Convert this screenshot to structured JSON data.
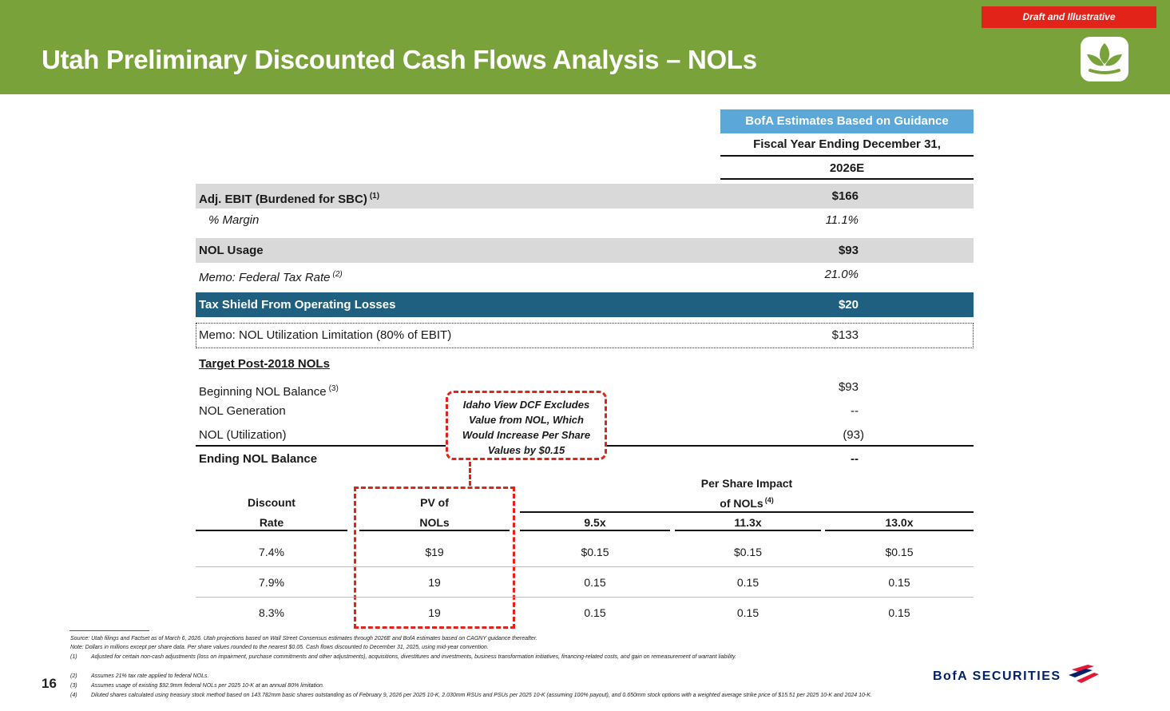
{
  "header": {
    "title": "Utah Preliminary Discounted Cash Flows Analysis – NOLs",
    "badge": "Draft and Illustrative",
    "logo_icon": "utah-leaf-logo-icon"
  },
  "column_header": {
    "guidance": "BofA Estimates Based on Guidance",
    "fiscal_year": "Fiscal Year Ending December 31,",
    "year": "2026E"
  },
  "rows": {
    "ebit": {
      "label": "Adj. EBIT (Burdened for SBC)",
      "note": "(1)",
      "value": "$166"
    },
    "margin": {
      "label": "% Margin",
      "value": "11.1%"
    },
    "nol_usage": {
      "label": "NOL Usage",
      "value": "$93"
    },
    "tax_rate": {
      "label": "Memo: Federal Tax Rate",
      "note": "(2)",
      "value": "21.0%"
    },
    "tax_shield": {
      "label": "Tax Shield From Operating Losses",
      "value": "$20"
    },
    "limitation": {
      "label": "Memo: NOL Utilization Limitation (80% of EBIT)",
      "value": "$133"
    },
    "target": {
      "label": "Target Post-2018 NOLs"
    },
    "beginning": {
      "label": "Beginning NOL Balance",
      "note": "(3)",
      "value": "$93"
    },
    "generation": {
      "label": "NOL Generation",
      "value": "--"
    },
    "utilization": {
      "label": "NOL (Utilization)",
      "value": "(93)"
    },
    "ending": {
      "label": "Ending NOL Balance",
      "value": "--"
    }
  },
  "callout": {
    "lines": [
      "Idaho View DCF Excludes",
      "Value from NOL, Which",
      "Would Increase Per Share",
      "Values by $0.15"
    ]
  },
  "sensitivity": {
    "discount_header": [
      "Discount",
      "Rate"
    ],
    "pv_header": [
      "PV of",
      "NOLs"
    ],
    "impact_header": [
      "Per Share Impact",
      "of NOLs"
    ],
    "impact_note": "(4)",
    "multiples": [
      "9.5x",
      "11.3x",
      "13.0x"
    ],
    "rows": [
      {
        "rate": "7.4%",
        "pv": "$19",
        "impacts": [
          "$0.15",
          "$0.15",
          "$0.15"
        ]
      },
      {
        "rate": "7.9%",
        "pv": "19",
        "impacts": [
          "0.15",
          "0.15",
          "0.15"
        ]
      },
      {
        "rate": "8.3%",
        "pv": "19",
        "impacts": [
          "0.15",
          "0.15",
          "0.15"
        ]
      }
    ]
  },
  "footnotes": {
    "source": "Source: Utah filings and Factset as of March 6, 2026. Utah projections based on Wall Street Consensus estimates through 2026E and BofA estimates based on CAGNY guidance thereafter.",
    "note": "Note: Dollars in millions except per share data. Per share values rounded to the nearest $0.05. Cash flows discounted to December 31, 2025, using mid-year convention.",
    "items": [
      {
        "num": "(1)",
        "text": "Adjusted for certain non-cash adjustments (loss on impairment, purchase commitments and other adjustments), acquisitions, divestitures and investments, business transformation initiatives, financing-related costs, and gain on remeasurement of warrant liability."
      },
      {
        "num": "(2)",
        "text": "Assumes 21% tax rate applied to federal NOLs."
      },
      {
        "num": "(3)",
        "text": "Assumes usage of existing $92.9mm federal NOLs per 2025 10-K at an annual 80% limitation."
      },
      {
        "num": "(4)",
        "text": "Diluted shares calculated using treasury stock method based on 143.782mm basic shares outstanding as of February 9, 2026 per 2025 10-K, 2.030mm RSUs and PSUs per 2025 10-K (assuming 100% payout), and 0.650mm stock options with a weighted average strike price of $15.51 per 2025 10-K and 2024 10-K."
      }
    ]
  },
  "footer": {
    "page_number": "16",
    "brand": "BofA SECURITIES",
    "brand_icon": "bofa-flag-icon"
  },
  "colors": {
    "header_green": "#7aa23a",
    "guidance_blue": "#5aa7d8",
    "shield_blue": "#1f5f7f",
    "callout_red": "#e2231a",
    "row_gray": "#d9d9d9",
    "bofa_navy": "#012169"
  }
}
